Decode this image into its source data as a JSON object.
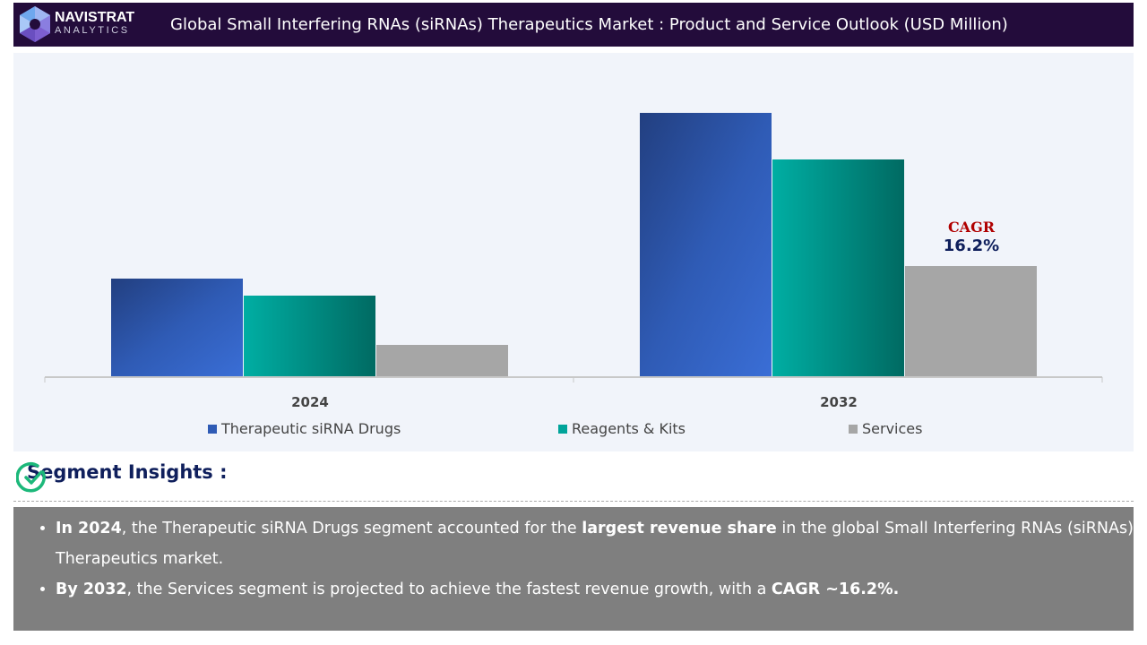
{
  "header": {
    "brand_line1": "NAVISTRAT",
    "brand_line2": "ANALYTICS",
    "title": "Global Small Interfering RNAs (siRNAs) Therapeutics Market : Product and Service Outlook (USD Million)"
  },
  "chart_data": {
    "type": "bar",
    "title": "Global Small Interfering RNAs (siRNAs) Therapeutics Market : Product and Service Outlook (USD Million)",
    "categories": [
      "2024",
      "2032"
    ],
    "series": [
      {
        "name": "Therapeutic siRNA Drugs",
        "values": [
          110,
          295
        ],
        "color": "#2f5bb5"
      },
      {
        "name": "Reagents & Kits",
        "values": [
          91,
          243
        ],
        "color": "#00a49a"
      },
      {
        "name": "Services",
        "values": [
          36,
          124
        ],
        "color": "#a6a6a6"
      }
    ],
    "ylim": [
      0,
      300
    ],
    "y_axis_shown": false,
    "grid": false,
    "legend_placement": "bottom",
    "annotation": {
      "label": "CAGR",
      "value": "16.2%"
    }
  },
  "insights": {
    "title": "Segment Insights :",
    "bullets": [
      {
        "b1": "In 2024",
        "t1": ", the Therapeutic siRNA Drugs segment accounted for the ",
        "b2": "largest revenue share",
        "t2": " in the global Small Interfering RNAs (siRNAs) Therapeutics market."
      },
      {
        "b1": "By 2032",
        "t1": ", the Services segment is projected to achieve the fastest revenue growth, with a ",
        "b2": "CAGR ~16.2%.",
        "t2": ""
      }
    ]
  }
}
